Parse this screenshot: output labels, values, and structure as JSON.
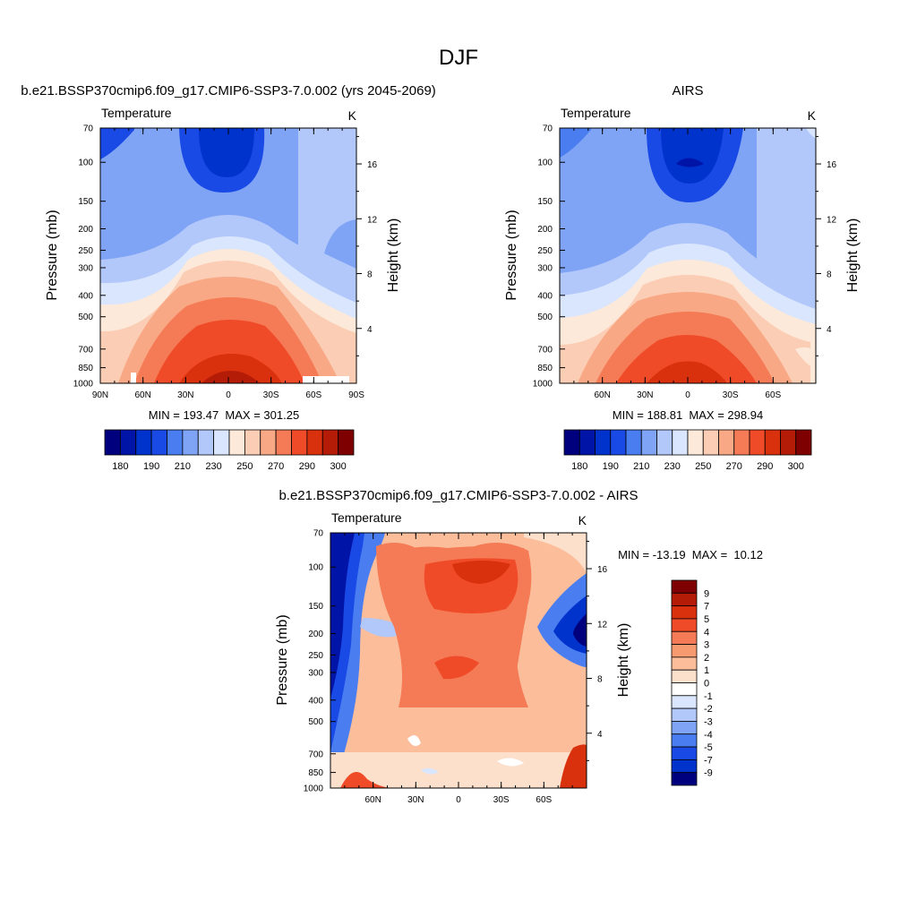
{
  "figure": {
    "title": "DJF"
  },
  "chart_data": [
    {
      "type": "heatmap",
      "id": "model",
      "title": "b.e21.BSSP370cmip6.f09_g17.CMIP6-SSP3-7.0.002 (yrs 2045-2069)",
      "left_label": "Temperature",
      "units": "K",
      "ylabel": "Pressure (mb)",
      "y2label": "Height (km)",
      "x_ticks": [
        "90N",
        "60N",
        "30N",
        "0",
        "30S",
        "60S",
        "90S"
      ],
      "x_tick_values": [
        90,
        60,
        30,
        0,
        -30,
        -60,
        -90
      ],
      "xlim": [
        90,
        -90
      ],
      "y_ticks": [
        "70",
        "100",
        "150",
        "200",
        "250",
        "300",
        "400",
        "500",
        "700",
        "850",
        "1000"
      ],
      "y_tick_values": [
        70,
        100,
        150,
        200,
        250,
        300,
        400,
        500,
        700,
        850,
        1000
      ],
      "ylim": [
        1000,
        70
      ],
      "y_scale": "log",
      "y2_ticks": [
        "4",
        "8",
        "12",
        "16"
      ],
      "y2_tick_values": [
        4,
        8,
        12,
        16
      ],
      "stats": "MIN = 193.47  MAX = 301.25",
      "min": 193.47,
      "max": 301.25,
      "colorbar": {
        "orientation": "horizontal",
        "labels": [
          "180",
          "190",
          "210",
          "230",
          "250",
          "270",
          "290",
          "300"
        ],
        "levels": [
          180,
          185,
          190,
          200,
          210,
          220,
          230,
          240,
          250,
          260,
          270,
          280,
          290,
          295,
          300
        ],
        "colors": [
          "#00007f",
          "#0014a8",
          "#0033cc",
          "#1a4ae6",
          "#4a7ef0",
          "#7fa3f5",
          "#b3c8fa",
          "#d9e6fd",
          "#fde9d9",
          "#fbcdb4",
          "#f8a884",
          "#f57a56",
          "#f04b28",
          "#d9300e",
          "#b51c08",
          "#7f0000"
        ]
      }
    },
    {
      "type": "heatmap",
      "id": "obs",
      "title": "AIRS",
      "left_label": "Temperature",
      "units": "K",
      "ylabel": "Pressure (mb)",
      "y2label": "Height (km)",
      "x_ticks": [
        "60N",
        "30N",
        "0",
        "30S",
        "60S"
      ],
      "x_tick_values": [
        60,
        30,
        0,
        -30,
        -60
      ],
      "xlim": [
        90,
        -90
      ],
      "y_ticks": [
        "70",
        "100",
        "150",
        "200",
        "250",
        "300",
        "400",
        "500",
        "700",
        "850",
        "1000"
      ],
      "y_tick_values": [
        70,
        100,
        150,
        200,
        250,
        300,
        400,
        500,
        700,
        850,
        1000
      ],
      "ylim": [
        1000,
        70
      ],
      "y_scale": "log",
      "y2_ticks": [
        "4",
        "8",
        "12",
        "16"
      ],
      "y2_tick_values": [
        4,
        8,
        12,
        16
      ],
      "stats": "MIN = 188.81  MAX = 298.94",
      "min": 188.81,
      "max": 298.94,
      "colorbar": {
        "orientation": "horizontal",
        "labels": [
          "180",
          "190",
          "210",
          "230",
          "250",
          "270",
          "290",
          "300"
        ],
        "levels": [
          180,
          185,
          190,
          200,
          210,
          220,
          230,
          240,
          250,
          260,
          270,
          280,
          290,
          295,
          300
        ],
        "colors": [
          "#00007f",
          "#0014a8",
          "#0033cc",
          "#1a4ae6",
          "#4a7ef0",
          "#7fa3f5",
          "#b3c8fa",
          "#d9e6fd",
          "#fde9d9",
          "#fbcdb4",
          "#f8a884",
          "#f57a56",
          "#f04b28",
          "#d9300e",
          "#b51c08",
          "#7f0000"
        ]
      }
    },
    {
      "type": "heatmap",
      "id": "diff",
      "title": "b.e21.BSSP370cmip6.f09_g17.CMIP6-SSP3-7.0.002 - AIRS",
      "left_label": "Temperature",
      "units": "K",
      "ylabel": "Pressure (mb)",
      "y2label": "Height (km)",
      "x_ticks": [
        "60N",
        "30N",
        "0",
        "30S",
        "60S"
      ],
      "x_tick_values": [
        60,
        30,
        0,
        -30,
        -60
      ],
      "xlim": [
        90,
        -90
      ],
      "y_ticks": [
        "70",
        "100",
        "150",
        "200",
        "250",
        "300",
        "400",
        "500",
        "700",
        "850",
        "1000"
      ],
      "y_tick_values": [
        70,
        100,
        150,
        200,
        250,
        300,
        400,
        500,
        700,
        850,
        1000
      ],
      "ylim": [
        1000,
        70
      ],
      "y_scale": "log",
      "y2_ticks": [
        "4",
        "8",
        "12",
        "16"
      ],
      "y2_tick_values": [
        4,
        8,
        12,
        16
      ],
      "stats": "MIN = -13.19  MAX =  10.12",
      "min": -13.19,
      "max": 10.12,
      "colorbar": {
        "orientation": "vertical",
        "labels": [
          "9",
          "7",
          "5",
          "4",
          "3",
          "2",
          "1",
          "0",
          "-1",
          "-2",
          "-3",
          "-4",
          "-5",
          "-7",
          "-9"
        ],
        "colors": [
          "#7f0000",
          "#b51c08",
          "#d9300e",
          "#f04b28",
          "#f57a56",
          "#f89a70",
          "#fbbd9a",
          "#fde0cc",
          "#ffffff",
          "#d9e6fd",
          "#b3c8fa",
          "#7fa3f5",
          "#4a7ef0",
          "#1a4ae6",
          "#0033cc",
          "#00007f"
        ]
      }
    }
  ]
}
